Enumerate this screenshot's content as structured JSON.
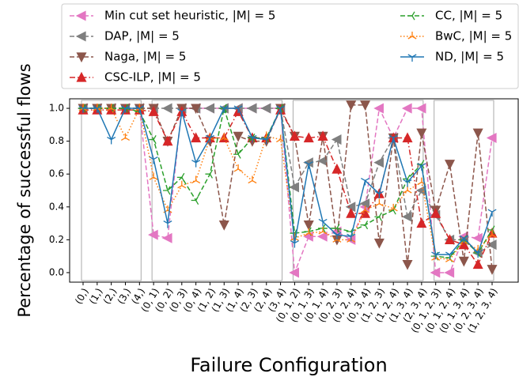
{
  "chart_data": {
    "type": "line",
    "xlabel": "Failure Configuration",
    "ylabel": "Percentage of successful flows",
    "categories": [
      "(0,)",
      "(1,)",
      "(2,)",
      "(3,)",
      "(4,)",
      "(0, 1)",
      "(0, 2)",
      "(0, 3)",
      "(0, 4)",
      "(1, 2)",
      "(1, 3)",
      "(1, 4)",
      "(2, 3)",
      "(2, 4)",
      "(3, 4)",
      "(0, 1, 2)",
      "(0, 1, 3)",
      "(0, 1, 4)",
      "(0, 2, 3)",
      "(0, 2, 4)",
      "(0, 3, 4)",
      "(1, 2, 3)",
      "(1, 2, 4)",
      "(1, 3, 4)",
      "(2, 3, 4)",
      "(0, 1, 2, 3)",
      "(0, 1, 2, 4)",
      "(0, 1, 3, 4)",
      "(0, 2, 3, 4)",
      "(1, 2, 3, 4)"
    ],
    "ylim": [
      -0.058,
      1.058
    ],
    "yticks": [
      {
        "value": 0,
        "label": "0.0"
      },
      0.2,
      0.4,
      0.6,
      0.8,
      {
        "value": 1,
        "label": "1.0"
      }
    ],
    "legend": "top",
    "series": [
      {
        "name": "Min cut set heuristic, |M| = 5",
        "color": "#e377c2",
        "marker": "triangle-left",
        "linestyle": "dashed",
        "values": [
          1,
          1,
          1,
          1,
          1,
          0.23,
          0.21,
          1,
          1,
          1,
          1,
          1,
          1,
          1,
          1,
          0,
          0.22,
          0.22,
          0.25,
          0.2,
          0.4,
          1,
          0.82,
          1,
          1,
          0,
          0,
          0.22,
          0.21,
          0.82
        ]
      },
      {
        "name": "DAP, |M| = 5",
        "color": "#7f7f7f",
        "marker": "triangle-left",
        "linestyle": "dashed",
        "values": [
          1,
          1,
          1,
          1,
          1,
          1,
          1,
          1,
          1,
          1,
          1,
          1,
          1,
          1,
          1,
          0.52,
          0.67,
          0.68,
          0.81,
          0.4,
          0.42,
          0.67,
          0.82,
          0.34,
          0.5,
          0.35,
          0.2,
          0.2,
          0.12,
          0.17
        ]
      },
      {
        "name": "Naga, |M| = 5",
        "color": "#8c564b",
        "marker": "triangle-down",
        "linestyle": "dashed",
        "values": [
          1,
          1,
          1,
          1,
          1,
          1,
          0.8,
          1,
          1,
          0.8,
          0.29,
          0.83,
          0.8,
          0.8,
          1,
          0.83,
          0.29,
          0.83,
          0.2,
          1.02,
          1.02,
          0.18,
          0.82,
          0.05,
          0.85,
          0.38,
          0.66,
          0.07,
          0.85,
          0.02
        ]
      },
      {
        "name": "CSC-ILP, |M| = 5",
        "color": "#d62728",
        "marker": "triangle-up",
        "linestyle": "dashdot",
        "values": [
          0.99,
          0.99,
          0.99,
          0.99,
          0.99,
          0.98,
          0.8,
          0.98,
          0.82,
          0.82,
          0.82,
          0.98,
          0.82,
          0.82,
          0.99,
          0.83,
          0.82,
          0.83,
          0.63,
          0.36,
          0.36,
          0.48,
          0.82,
          0.82,
          0.3,
          0.36,
          0.2,
          0.17,
          0.05,
          0.24
        ]
      },
      {
        "name": "CC, |M| = 5",
        "color": "#2ca02c",
        "marker": "tri-left",
        "linestyle": "dashed",
        "values": [
          1,
          1,
          1,
          1,
          0.98,
          0.81,
          0.5,
          0.58,
          0.44,
          0.6,
          1,
          0.72,
          0.82,
          0.82,
          1,
          0.24,
          0.25,
          0.27,
          0.27,
          0.25,
          0.29,
          0.34,
          0.38,
          0.57,
          0.66,
          0.1,
          0.09,
          0.2,
          0.12,
          0.26
        ]
      },
      {
        "name": "BwC, |M| = 5",
        "color": "#ff7f0e",
        "marker": "tri-up",
        "linestyle": "dotted",
        "values": [
          1,
          1,
          1,
          0.82,
          1,
          0.58,
          0.38,
          0.53,
          0.56,
          0.82,
          0.82,
          0.63,
          0.56,
          0.83,
          0.81,
          0.21,
          0.24,
          0.25,
          0.2,
          0.2,
          0.38,
          0.42,
          0.39,
          0.5,
          0.55,
          0.09,
          0.08,
          0.19,
          0.14,
          0.23
        ]
      },
      {
        "name": "ND, |M| = 5",
        "color": "#1f77b4",
        "marker": "tri-down",
        "linestyle": "solid",
        "values": [
          1,
          1,
          0.81,
          1,
          1,
          0.69,
          0.3,
          0.98,
          0.67,
          0.82,
          1,
          1,
          0.82,
          0.81,
          1,
          0.18,
          0.66,
          0.31,
          0.23,
          0.22,
          0.56,
          0.48,
          0.82,
          0.55,
          0.65,
          0.11,
          0.11,
          0.21,
          0.12,
          0.37
        ]
      }
    ]
  }
}
